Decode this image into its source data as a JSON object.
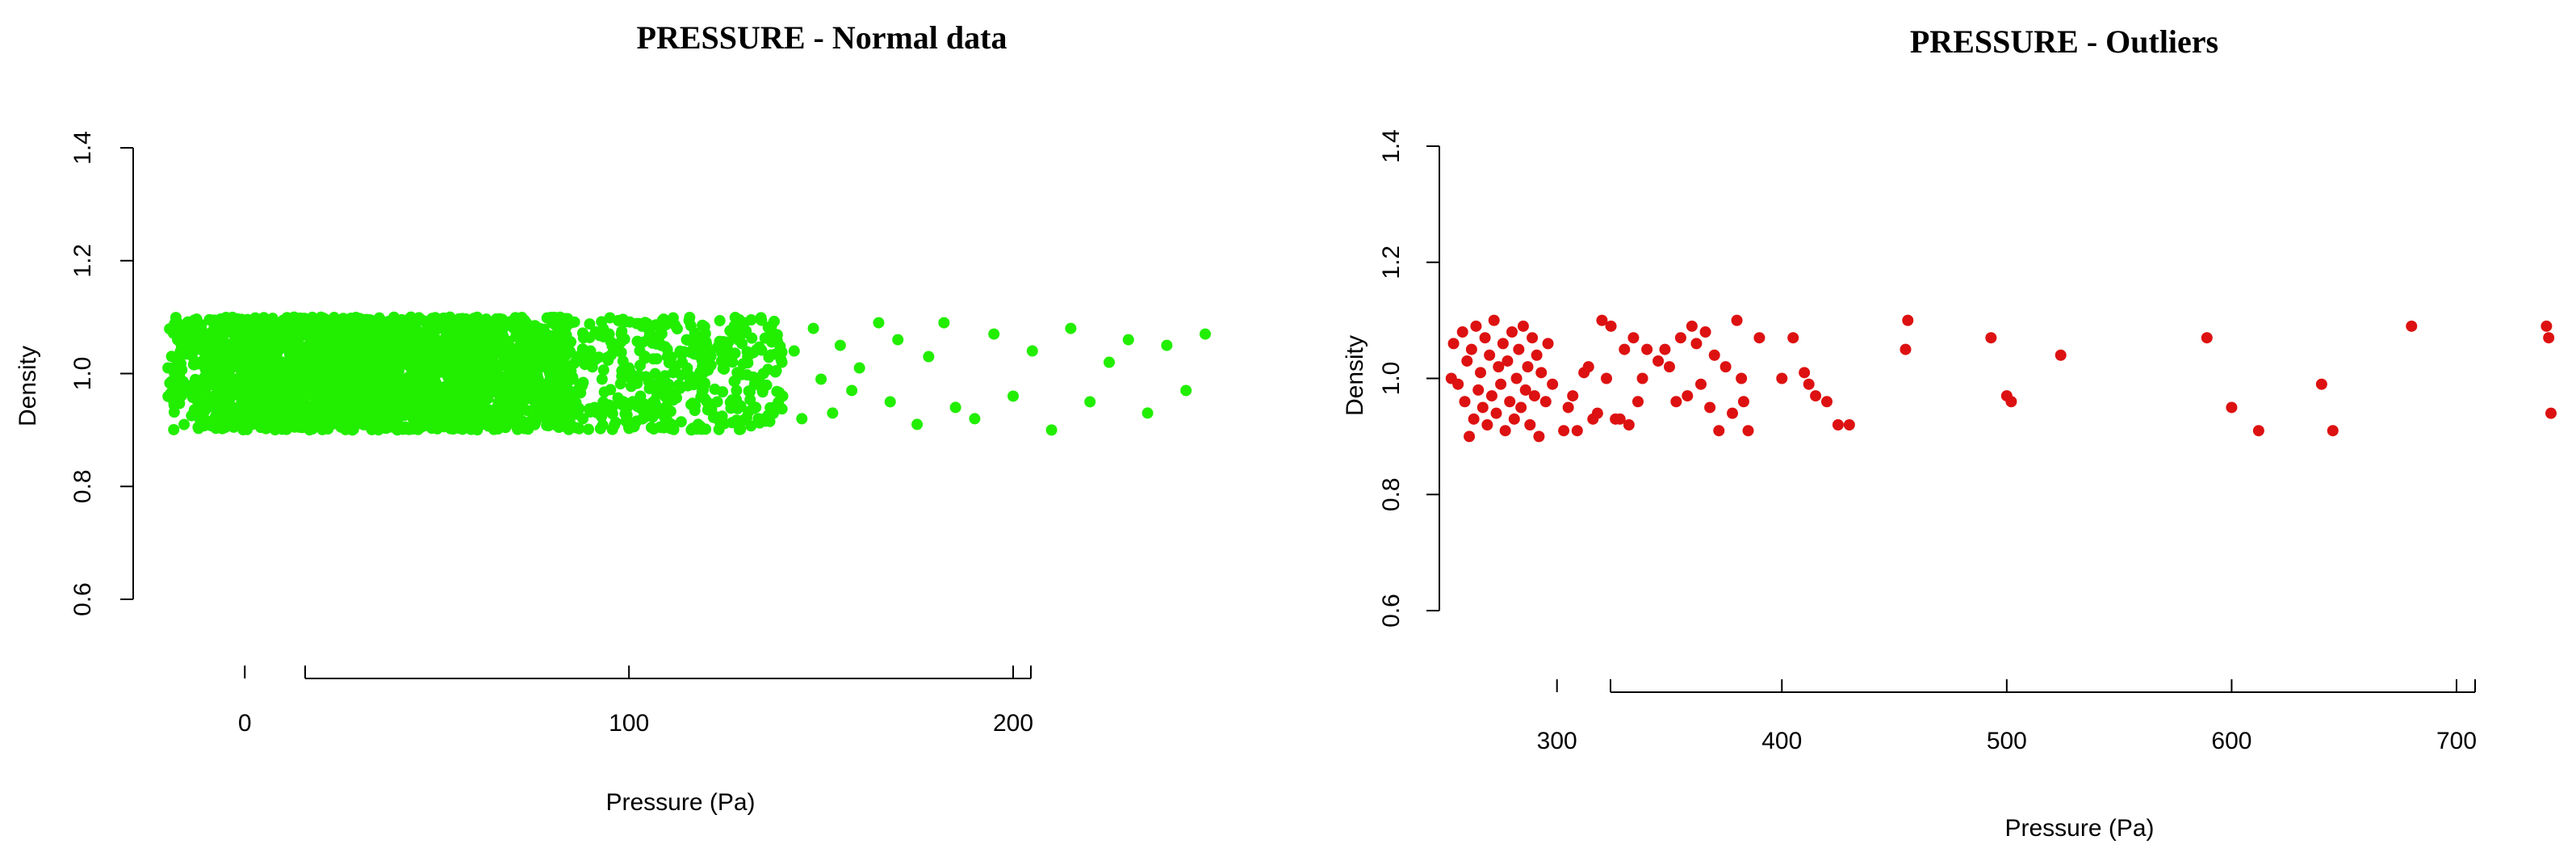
{
  "chart_data": [
    {
      "type": "scatter",
      "title": "PRESSURE - Normal data",
      "xlabel": "Pressure (Pa)",
      "ylabel": "Density",
      "xlim": [
        -28,
        254
      ],
      "ylim": [
        0.6,
        1.4
      ],
      "x_ticks": [
        0,
        100,
        200
      ],
      "y_ticks": [
        0.6,
        0.8,
        1.0,
        1.2,
        1.4
      ],
      "grid": false,
      "legend": "none",
      "point_color": "#22ee00",
      "jitter_y_range": [
        0.9,
        1.1
      ],
      "series": [
        {
          "x": [
            -20,
            -12,
            -8,
            -5,
            -3,
            0,
            2,
            4,
            5,
            6,
            8,
            10,
            12,
            14,
            15,
            17,
            18,
            20,
            22,
            24,
            25,
            27,
            28,
            30,
            32,
            34,
            35,
            37,
            38,
            40,
            42,
            44,
            45,
            47,
            48,
            50,
            52,
            54,
            55,
            57,
            60,
            62,
            65,
            67,
            70,
            72,
            75,
            78,
            80,
            83,
            85,
            88,
            90,
            93,
            95,
            98,
            100,
            103,
            105,
            108,
            110,
            113,
            115,
            118,
            120,
            123,
            125,
            128,
            130,
            133,
            135,
            138,
            140,
            143,
            145,
            148,
            150,
            153,
            155,
            158,
            160,
            165,
            168,
            170,
            175,
            178,
            182,
            185,
            190,
            195,
            200,
            205,
            210,
            215,
            220,
            225,
            230,
            235,
            240,
            245,
            250
          ],
          "y": [
            1.01,
            0.96,
            1.05,
            0.93,
            1.07,
            0.98,
            1.02,
            0.91,
            1.08,
            0.95,
            1.03,
            0.99,
            1.06,
            0.92,
            1.04,
            0.97,
            1.09,
            0.94,
            1.01,
            1.07,
            0.96,
            1.03,
            0.9,
            1.05,
            0.98,
            1.08,
            0.93,
            1.02,
            0.95,
            1.06,
            0.99,
            0.92,
            1.04,
            0.97,
            1.09,
            0.94,
            1.01,
            1.05,
            0.96,
            1.08,
            0.91,
            1.03,
            0.98,
            1.07,
            0.93,
            1.0,
            1.06,
            0.95,
            1.02,
            0.97,
            1.09,
            0.92,
            1.04,
            0.99,
            0.94,
            1.07,
            1.01,
            0.96,
            1.08,
            0.93,
            1.03,
            0.98,
            1.06,
            0.91,
            1.05,
            0.95,
            1.02,
            0.97,
            1.09,
            0.94,
            1.0,
            1.07,
            0.96,
            1.04,
            0.92,
            1.08,
            0.99,
            0.93,
            1.05,
            0.97,
            1.01,
            1.09,
            0.95,
            1.06,
            0.91,
            1.03,
            1.09,
            0.94,
            0.92,
            1.07,
            0.96,
            1.04,
            0.9,
            1.08,
            0.95,
            1.02,
            1.06,
            0.93,
            1.05,
            0.97,
            1.07
          ]
        }
      ]
    },
    {
      "type": "scatter",
      "title": "PRESSURE - Outliers",
      "xlabel": "Pressure (Pa)",
      "ylabel": "Density",
      "xlim": [
        252,
        742
      ],
      "ylim": [
        0.6,
        1.4
      ],
      "x_ticks": [
        300,
        400,
        500,
        600,
        700
      ],
      "y_ticks": [
        0.6,
        0.8,
        1.0,
        1.2,
        1.4
      ],
      "grid": false,
      "legend": "none",
      "point_color": "#dd1111",
      "series": [
        {
          "x": [
            253,
            254,
            256,
            258,
            259,
            260,
            261,
            262,
            263,
            264,
            265,
            266,
            267,
            268,
            269,
            270,
            271,
            272,
            273,
            274,
            275,
            276,
            277,
            278,
            279,
            280,
            281,
            282,
            283,
            284,
            285,
            286,
            287,
            288,
            289,
            290,
            291,
            292,
            293,
            295,
            296,
            298,
            303,
            305,
            307,
            309,
            312,
            314,
            316,
            318,
            320,
            322,
            324,
            326,
            328,
            330,
            332,
            334,
            336,
            338,
            340,
            345,
            348,
            350,
            353,
            355,
            358,
            360,
            362,
            364,
            366,
            368,
            370,
            372,
            375,
            378,
            380,
            382,
            383,
            385,
            390,
            400,
            405,
            410,
            412,
            415,
            420,
            425,
            430,
            455,
            456,
            493,
            500,
            502,
            524,
            589,
            600,
            612,
            640,
            645,
            680,
            740,
            741,
            742
          ],
          "y": [
            1.0,
            1.06,
            0.99,
            1.08,
            0.96,
            1.03,
            0.9,
            1.05,
            0.93,
            1.09,
            0.98,
            1.01,
            0.95,
            1.07,
            0.92,
            1.04,
            0.97,
            1.1,
            0.94,
            1.02,
            0.99,
            1.06,
            0.91,
            1.03,
            0.96,
            1.08,
            0.93,
            1.0,
            1.05,
            0.95,
            1.09,
            0.98,
            1.02,
            0.92,
            1.07,
            0.97,
            1.04,
            0.9,
            1.01,
            0.96,
            1.06,
            0.99,
            0.91,
            0.95,
            0.97,
            0.91,
            1.01,
            1.02,
            0.93,
            0.94,
            1.1,
            1.0,
            1.09,
            0.93,
            0.93,
            1.05,
            0.92,
            1.07,
            0.96,
            1.0,
            1.05,
            1.03,
            1.05,
            1.02,
            0.96,
            1.07,
            0.97,
            1.09,
            1.06,
            0.99,
            1.08,
            0.95,
            1.04,
            0.91,
            1.02,
            0.94,
            1.1,
            1.0,
            0.96,
            0.91,
            1.07,
            1.0,
            1.07,
            1.01,
            0.99,
            0.97,
            0.96,
            0.92,
            0.92,
            1.05,
            1.1,
            1.07,
            0.97,
            0.96,
            1.04,
            1.07,
            0.95,
            0.91,
            0.99,
            0.91,
            1.09,
            1.09,
            1.07,
            0.94
          ]
        }
      ]
    }
  ]
}
